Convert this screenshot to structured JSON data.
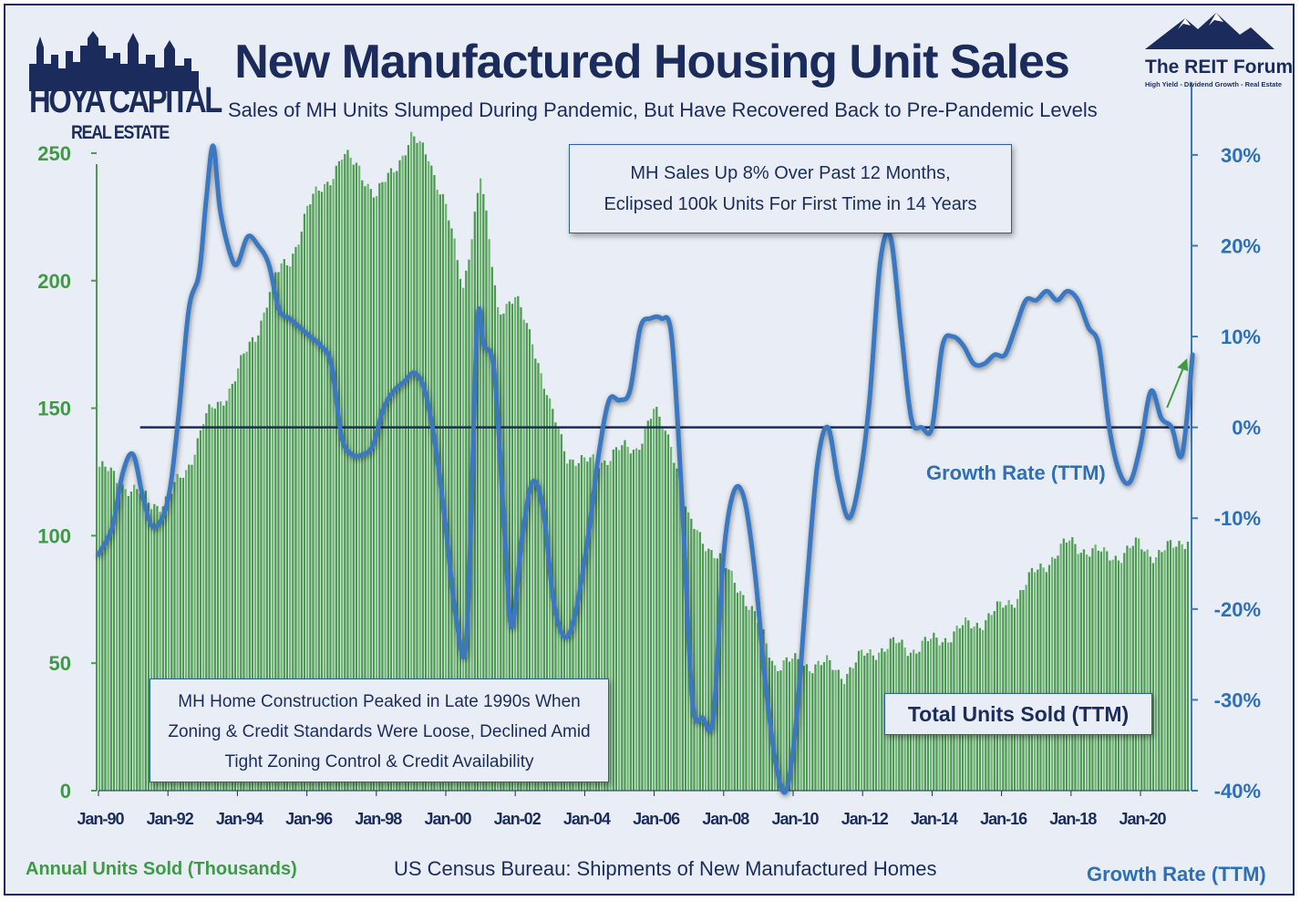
{
  "title": "New Manufactured Housing Unit Sales",
  "subtitle": "Sales of MH Units Slumped During Pandemic, But Have Recovered Back to Pre-Pandemic Levels",
  "logo_left": {
    "brand": "HOYA CAPITAL",
    "sub": "REAL ESTATE"
  },
  "logo_right": {
    "name": "The REIT Forum",
    "tagline": "High Yield - Dividend Growth - Real Estate"
  },
  "callout_top": {
    "line1": "MH Sales Up 8% Over Past 12 Months,",
    "line2": "Eclipsed 100k Units For First Time in 14 Years"
  },
  "callout_bottom": {
    "line1": "MH Home Construction Peaked in Late 1990s When",
    "line2": "Zoning & Credit Standards Were Loose, Declined Amid",
    "line3": "Tight Zoning Control & Credit Availability"
  },
  "series_box_label": "Total Units Sold (TTM)",
  "growth_inline_label": "Growth Rate (TTM)",
  "footer": {
    "left_axis_title": "Annual Units Sold (Thousands)",
    "source": "US Census Bureau: Shipments of New Manufactured Homes",
    "right_axis_title": "Growth Rate (TTM)"
  },
  "colors": {
    "bars": "#4c9a4f",
    "bars_light": "#6fb572",
    "line": "#3a78c2",
    "zero_line": "#1b2c5c",
    "left_axis_text": "#3e9a45",
    "right_axis_text": "#2d6fb8",
    "dark_navy": "#1b2c5c",
    "background": "#e9eef6"
  },
  "chart_data": {
    "type": "bar",
    "x_tick_labels": [
      "Jan-90",
      "Jan-92",
      "Jan-94",
      "Jan-96",
      "Jan-98",
      "Jan-00",
      "Jan-02",
      "Jan-04",
      "Jan-06",
      "Jan-08",
      "Jan-10",
      "Jan-12",
      "Jan-14",
      "Jan-16",
      "Jan-18",
      "Jan-20"
    ],
    "x_range": [
      "1990-01",
      "2021-06"
    ],
    "y_left": {
      "label": "Annual Units Sold (Thousands)",
      "range": [
        0,
        260
      ],
      "ticks": [
        0,
        50,
        100,
        150,
        200,
        250
      ]
    },
    "y_right": {
      "label": "Growth Rate (TTM)",
      "range": [
        -40,
        33
      ],
      "ticks": [
        -40,
        -30,
        -20,
        -10,
        0,
        10,
        20,
        30
      ],
      "tick_labels": [
        "-40%",
        "-30%",
        "-20%",
        "-10%",
        "0%",
        "10%",
        "20%",
        "30%"
      ]
    },
    "series": [
      {
        "name": "Total Units Sold (TTM)",
        "type": "bar",
        "axis": "left",
        "points": [
          [
            1990.0,
            127
          ],
          [
            1990.5,
            122
          ],
          [
            1991.0,
            118
          ],
          [
            1991.5,
            112
          ],
          [
            1992.0,
            115
          ],
          [
            1992.5,
            125
          ],
          [
            1993.0,
            145
          ],
          [
            1993.5,
            152
          ],
          [
            1994.0,
            165
          ],
          [
            1994.5,
            178
          ],
          [
            1995.0,
            200
          ],
          [
            1995.5,
            208
          ],
          [
            1996.0,
            228
          ],
          [
            1996.5,
            238
          ],
          [
            1997.0,
            248
          ],
          [
            1997.5,
            245
          ],
          [
            1998.0,
            232
          ],
          [
            1998.5,
            245
          ],
          [
            1999.0,
            255
          ],
          [
            1999.5,
            250
          ],
          [
            2000.0,
            228
          ],
          [
            2000.5,
            198
          ],
          [
            2001.0,
            240
          ],
          [
            2001.5,
            190
          ],
          [
            2002.0,
            192
          ],
          [
            2002.5,
            178
          ],
          [
            2003.0,
            150
          ],
          [
            2003.5,
            132
          ],
          [
            2004.0,
            128
          ],
          [
            2004.5,
            130
          ],
          [
            2005.0,
            133
          ],
          [
            2005.5,
            135
          ],
          [
            2006.0,
            148
          ],
          [
            2006.5,
            138
          ],
          [
            2007.0,
            105
          ],
          [
            2007.5,
            98
          ],
          [
            2008.0,
            88
          ],
          [
            2008.5,
            80
          ],
          [
            2009.0,
            65
          ],
          [
            2009.5,
            50
          ],
          [
            2010.0,
            50
          ],
          [
            2010.5,
            50
          ],
          [
            2011.0,
            49
          ],
          [
            2011.5,
            46
          ],
          [
            2012.0,
            52
          ],
          [
            2012.5,
            56
          ],
          [
            2013.0,
            57
          ],
          [
            2013.5,
            56
          ],
          [
            2014.0,
            58
          ],
          [
            2014.5,
            61
          ],
          [
            2015.0,
            64
          ],
          [
            2015.5,
            67
          ],
          [
            2016.0,
            71
          ],
          [
            2016.5,
            77
          ],
          [
            2017.0,
            85
          ],
          [
            2017.5,
            92
          ],
          [
            2018.0,
            97
          ],
          [
            2018.5,
            95
          ],
          [
            2019.0,
            92
          ],
          [
            2019.5,
            93
          ],
          [
            2020.0,
            96
          ],
          [
            2020.5,
            93
          ],
          [
            2021.0,
            95
          ],
          [
            2021.5,
            101
          ]
        ]
      },
      {
        "name": "Growth Rate (TTM)",
        "type": "line",
        "axis": "right",
        "points": [
          [
            1990.0,
            -14
          ],
          [
            1990.4,
            -11
          ],
          [
            1990.7,
            -5
          ],
          [
            1991.0,
            -3
          ],
          [
            1991.3,
            -8
          ],
          [
            1991.6,
            -11
          ],
          [
            1992.0,
            -8
          ],
          [
            1992.3,
            1
          ],
          [
            1992.6,
            13
          ],
          [
            1992.9,
            17
          ],
          [
            1993.1,
            25
          ],
          [
            1993.3,
            31
          ],
          [
            1993.5,
            24
          ],
          [
            1993.8,
            19
          ],
          [
            1994.0,
            18
          ],
          [
            1994.3,
            21
          ],
          [
            1994.6,
            20
          ],
          [
            1994.9,
            18
          ],
          [
            1995.2,
            13
          ],
          [
            1995.5,
            12
          ],
          [
            1995.8,
            11
          ],
          [
            1996.1,
            10
          ],
          [
            1996.4,
            9
          ],
          [
            1996.7,
            7
          ],
          [
            1997.0,
            -1
          ],
          [
            1997.3,
            -3
          ],
          [
            1997.6,
            -3
          ],
          [
            1997.9,
            -2
          ],
          [
            1998.2,
            2
          ],
          [
            1998.5,
            4
          ],
          [
            1998.8,
            5
          ],
          [
            1999.1,
            6
          ],
          [
            1999.4,
            4
          ],
          [
            1999.7,
            -2
          ],
          [
            2000.0,
            -11
          ],
          [
            2000.3,
            -21
          ],
          [
            2000.6,
            -23
          ],
          [
            2000.9,
            11
          ],
          [
            2001.1,
            9
          ],
          [
            2001.4,
            6
          ],
          [
            2001.7,
            -12
          ],
          [
            2001.9,
            -22
          ],
          [
            2002.2,
            -12
          ],
          [
            2002.5,
            -6
          ],
          [
            2002.8,
            -9
          ],
          [
            2003.1,
            -19
          ],
          [
            2003.4,
            -23
          ],
          [
            2003.7,
            -21
          ],
          [
            2004.1,
            -12
          ],
          [
            2004.4,
            -3
          ],
          [
            2004.7,
            3
          ],
          [
            2005.0,
            3
          ],
          [
            2005.3,
            4
          ],
          [
            2005.6,
            11
          ],
          [
            2005.9,
            12
          ],
          [
            2006.2,
            12
          ],
          [
            2006.5,
            10
          ],
          [
            2006.8,
            -8
          ],
          [
            2007.1,
            -30
          ],
          [
            2007.4,
            -32
          ],
          [
            2007.7,
            -32
          ],
          [
            2008.0,
            -14
          ],
          [
            2008.3,
            -7
          ],
          [
            2008.6,
            -8
          ],
          [
            2008.9,
            -16
          ],
          [
            2009.2,
            -28
          ],
          [
            2009.5,
            -37
          ],
          [
            2009.8,
            -40
          ],
          [
            2010.1,
            -32
          ],
          [
            2010.4,
            -17
          ],
          [
            2010.7,
            -4
          ],
          [
            2011.0,
            0
          ],
          [
            2011.3,
            -6
          ],
          [
            2011.6,
            -10
          ],
          [
            2011.9,
            -6
          ],
          [
            2012.2,
            3
          ],
          [
            2012.5,
            18
          ],
          [
            2012.8,
            21
          ],
          [
            2013.1,
            11
          ],
          [
            2013.4,
            1
          ],
          [
            2013.7,
            0
          ],
          [
            2014.0,
            0
          ],
          [
            2014.3,
            9
          ],
          [
            2014.6,
            10
          ],
          [
            2014.9,
            9
          ],
          [
            2015.2,
            7
          ],
          [
            2015.5,
            7
          ],
          [
            2015.8,
            8
          ],
          [
            2016.1,
            8
          ],
          [
            2016.4,
            11
          ],
          [
            2016.7,
            14
          ],
          [
            2017.0,
            14
          ],
          [
            2017.3,
            15
          ],
          [
            2017.6,
            14
          ],
          [
            2017.9,
            15
          ],
          [
            2018.2,
            14
          ],
          [
            2018.5,
            11
          ],
          [
            2018.8,
            9
          ],
          [
            2019.1,
            0
          ],
          [
            2019.4,
            -5
          ],
          [
            2019.7,
            -6
          ],
          [
            2020.0,
            -2
          ],
          [
            2020.3,
            4
          ],
          [
            2020.6,
            1
          ],
          [
            2020.9,
            0
          ],
          [
            2021.2,
            -3
          ],
          [
            2021.5,
            8
          ]
        ]
      }
    ],
    "reference_line": {
      "axis": "right",
      "value": 0,
      "x_start": 1991.2
    },
    "grid": false
  }
}
